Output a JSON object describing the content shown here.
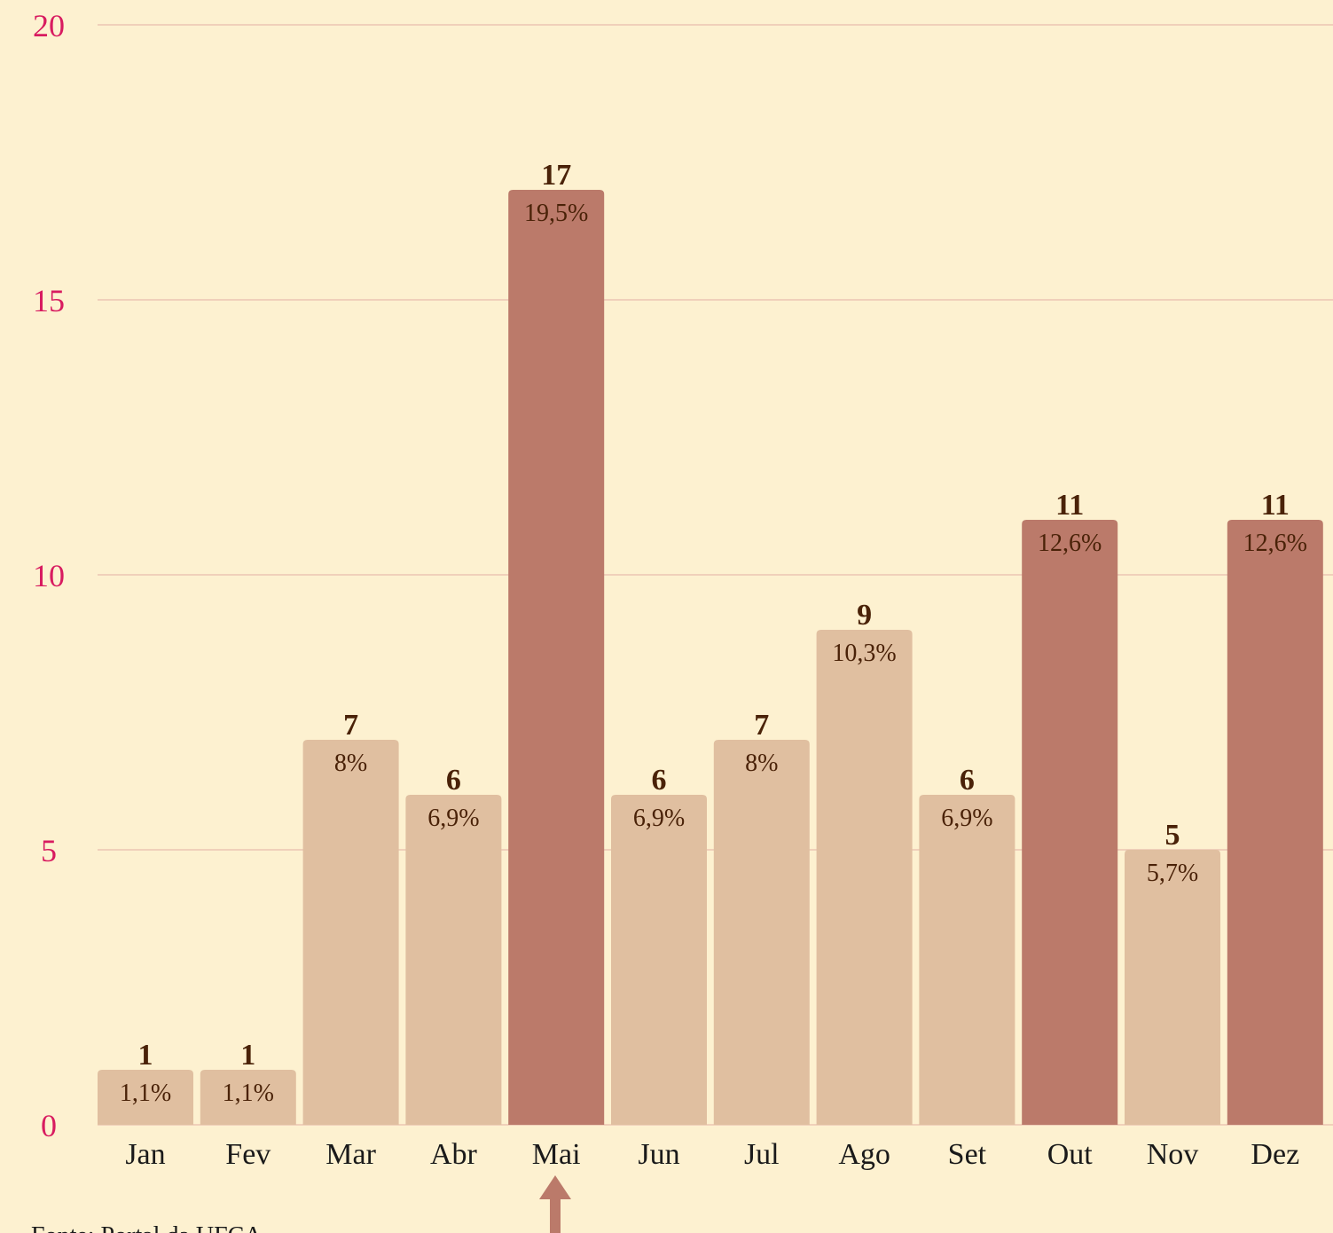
{
  "chart_data": {
    "type": "bar",
    "categories": [
      "Jan",
      "Fev",
      "Mar",
      "Abr",
      "Mai",
      "Jun",
      "Jul",
      "Ago",
      "Set",
      "Out",
      "Nov",
      "Dez"
    ],
    "values": [
      1,
      1,
      7,
      6,
      17,
      6,
      7,
      9,
      6,
      11,
      5,
      11
    ],
    "percent_labels": [
      "1,1%",
      "1,1%",
      "8%",
      "6,9%",
      "19,5%",
      "6,9%",
      "8%",
      "10,3%",
      "6,9%",
      "12,6%",
      "5,7%",
      "12,6%"
    ],
    "colors": [
      "#e0bfa0",
      "#e0bfa0",
      "#e0bfa0",
      "#e0bfa0",
      "#bb7a6a",
      "#e0bfa0",
      "#e0bfa0",
      "#e0bfa0",
      "#e0bfa0",
      "#bb7a6a",
      "#e0bfa0",
      "#bb7a6a"
    ],
    "ylim": [
      0,
      20
    ],
    "yticks": [
      0,
      5,
      10,
      15,
      20
    ],
    "grid": true,
    "source": "Fonte: Portal da UFCA"
  }
}
